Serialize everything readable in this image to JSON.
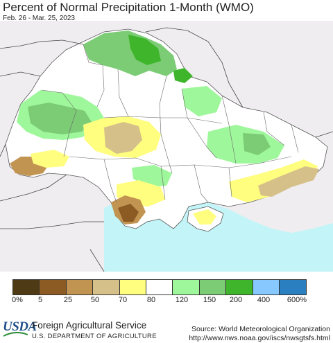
{
  "header": {
    "title": "Percent of Normal Precipitation 1-Month (WMO)",
    "date_range": "Feb. 26 - Mar. 25, 2023"
  },
  "legend": {
    "colors": [
      "#4e3a14",
      "#8c5a23",
      "#c29452",
      "#d6c08a",
      "#fffe7e",
      "#ffffff",
      "#9ff79b",
      "#7ccc76",
      "#3fb52b",
      "#87c8ff",
      "#2a7fc0"
    ],
    "labels": [
      "0%",
      "5",
      "25",
      "50",
      "70",
      "80",
      "120",
      "150",
      "200",
      "400",
      "600%"
    ]
  },
  "map": {
    "sea_color": "#c3f4f7",
    "land_outside_color": "#f0edf0",
    "border_color": "#555555"
  },
  "footer": {
    "logo_text": "USDA",
    "agency": "Foreign Agricultural Service",
    "department": "U.S. DEPARTMENT OF AGRICULTURE",
    "source": "Source: World Meteorological Organization",
    "url": "http://www.nws.noaa.gov/iscs/nwsgtsfs.html"
  }
}
